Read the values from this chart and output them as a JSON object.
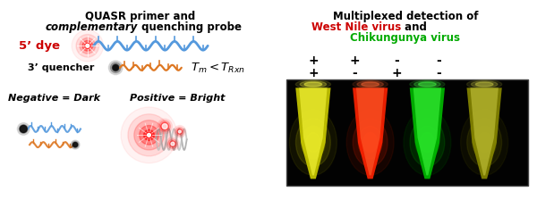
{
  "bg_color": "#ffffff",
  "left_title_line1": "QUASR primer and",
  "left_title_line2_italic": "complementary",
  "left_title_line2_normal": " quenching probe",
  "dye_label": "5’ dye",
  "quencher_label": "3’ quencher",
  "neg_label": "Negative = Dark",
  "pos_label": "Positive = Bright",
  "right_title_line1": "Multiplexed detection of",
  "right_title_red": "West Nile virus",
  "right_title_and": " and",
  "right_title_green": "Chikungunya virus",
  "row1": [
    "+",
    "+",
    "-",
    "-"
  ],
  "row2": [
    "+",
    "-",
    "+",
    "-"
  ],
  "blue_strand_color": "#5599dd",
  "orange_strand_color": "#dd7722",
  "red_color": "#cc0000",
  "green_color": "#00aa00",
  "tube_colors": [
    "#cccc00",
    "#ff2200",
    "#00bb00",
    "#888800"
  ],
  "tube_glow": [
    "#ffff44",
    "#ff6633",
    "#44ff44",
    "#cccc44"
  ]
}
